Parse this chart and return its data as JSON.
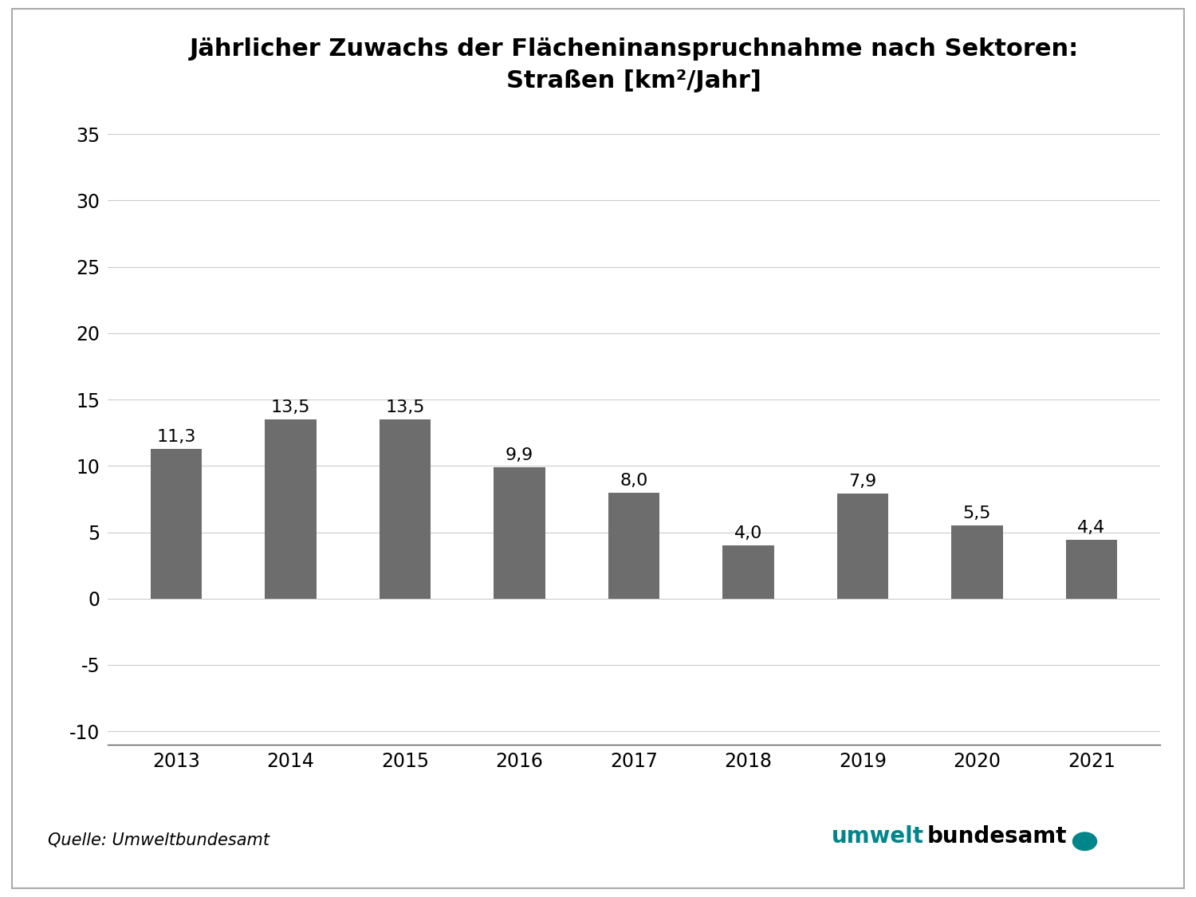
{
  "title_line1": "Jährlicher Zuwachs der Flächeninanspruchnahme nach Sektoren:",
  "title_line2": "Straßen [km²/Jahr]",
  "categories": [
    "2013",
    "2014",
    "2015",
    "2016",
    "2017",
    "2018",
    "2019",
    "2020",
    "2021"
  ],
  "values": [
    11.3,
    13.5,
    13.5,
    9.9,
    8.0,
    4.0,
    7.9,
    5.5,
    4.4
  ],
  "bar_color": "#6d6d6d",
  "ylim": [
    -11,
    37
  ],
  "yticks": [
    -10,
    -5,
    0,
    5,
    10,
    15,
    20,
    25,
    30,
    35
  ],
  "source_text": "Quelle: Umweltbundesamt",
  "logo_text_green": "umwelt",
  "logo_text_black": "bundesamt",
  "background_color": "#ffffff",
  "border_color": "#aaaaaa",
  "grid_color": "#cccccc",
  "title_fontsize": 22,
  "tick_fontsize": 17,
  "label_fontsize": 16,
  "source_fontsize": 15,
  "teal_color": "#00858A"
}
